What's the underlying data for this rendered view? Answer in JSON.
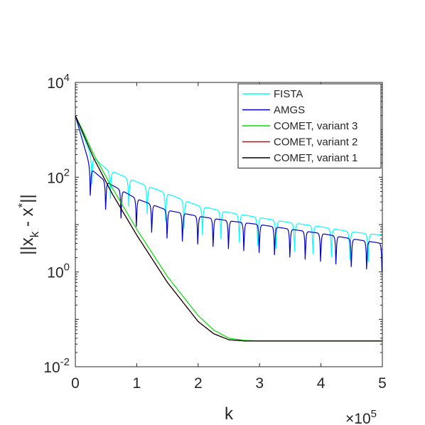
{
  "chart_data": {
    "type": "line",
    "title": "",
    "xlabel": "k",
    "ylabel": "||x_k - x^*||",
    "x_multiplier": "×10^5",
    "x_multiplier_base": "×10",
    "x_multiplier_exp": "5",
    "xlim": [
      0,
      5
    ],
    "ylim_log10": [
      -2,
      4
    ],
    "yscale": "log",
    "x_ticks": [
      "0",
      "1",
      "2",
      "3",
      "4",
      "5"
    ],
    "y_ticks": [
      {
        "base": "10",
        "exp": "-2"
      },
      {
        "base": "10",
        "exp": "0"
      },
      {
        "base": "10",
        "exp": "2"
      },
      {
        "base": "10",
        "exp": "4"
      }
    ],
    "legend_position": "top-right",
    "grid": false,
    "series": [
      {
        "name": "FISTA",
        "color": "#00ffff",
        "style": "oscillating",
        "points": [
          [
            0,
            2000
          ],
          [
            0.25,
            300
          ],
          [
            0.5,
            150
          ],
          [
            1.0,
            80
          ],
          [
            1.5,
            45
          ],
          [
            2.0,
            25
          ],
          [
            2.5,
            18
          ],
          [
            3.0,
            14
          ],
          [
            3.5,
            11
          ],
          [
            4.0,
            9
          ],
          [
            4.5,
            7
          ],
          [
            5.0,
            6
          ]
        ],
        "period": 0.3,
        "dip": 0.82
      },
      {
        "name": "AMGS",
        "color": "#0000cc",
        "style": "oscillating",
        "points": [
          [
            0,
            2000
          ],
          [
            0.25,
            150
          ],
          [
            0.5,
            80
          ],
          [
            1.0,
            35
          ],
          [
            1.5,
            20
          ],
          [
            2.0,
            15
          ],
          [
            2.5,
            12
          ],
          [
            3.0,
            10
          ],
          [
            3.5,
            8
          ],
          [
            4.0,
            6.5
          ],
          [
            4.5,
            5
          ],
          [
            5.0,
            4
          ]
        ],
        "period": 0.25,
        "dip": 0.88
      },
      {
        "name": "COMET, variant 3",
        "color": "#00dd00",
        "style": "smooth",
        "points": [
          [
            0,
            2000
          ],
          [
            0.1,
            1100
          ],
          [
            0.3,
            300
          ],
          [
            0.6,
            60
          ],
          [
            1.0,
            8
          ],
          [
            1.5,
            0.8
          ],
          [
            2.0,
            0.12
          ],
          [
            2.25,
            0.06
          ],
          [
            2.5,
            0.04
          ],
          [
            2.75,
            0.036
          ],
          [
            3.0,
            0.035
          ],
          [
            5.0,
            0.035
          ]
        ]
      },
      {
        "name": "COMET, variant 2",
        "color": "#dd0000",
        "style": "smooth",
        "points": [
          [
            0,
            2000
          ],
          [
            0.1,
            1000
          ],
          [
            0.3,
            250
          ],
          [
            0.6,
            45
          ],
          [
            1.0,
            6
          ],
          [
            1.5,
            0.6
          ],
          [
            2.0,
            0.09
          ],
          [
            2.25,
            0.05
          ],
          [
            2.5,
            0.037
          ],
          [
            2.75,
            0.035
          ],
          [
            3.0,
            0.035
          ],
          [
            5.0,
            0.035
          ]
        ]
      },
      {
        "name": "COMET, variant 1",
        "color": "#000000",
        "style": "smooth",
        "points": [
          [
            0,
            2000
          ],
          [
            0.1,
            1000
          ],
          [
            0.3,
            250
          ],
          [
            0.6,
            45
          ],
          [
            1.0,
            6
          ],
          [
            1.5,
            0.6
          ],
          [
            2.0,
            0.09
          ],
          [
            2.25,
            0.05
          ],
          [
            2.5,
            0.037
          ],
          [
            2.75,
            0.035
          ],
          [
            3.0,
            0.035
          ],
          [
            5.0,
            0.035
          ]
        ]
      }
    ]
  }
}
